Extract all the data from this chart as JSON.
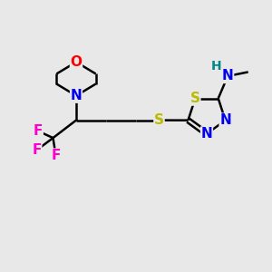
{
  "background_color": "#e8e8e8",
  "atom_colors": {
    "O": "#ff0000",
    "N": "#0000ee",
    "S": "#bbbb00",
    "F": "#ff00cc",
    "H": "#008888",
    "C": "#000000"
  },
  "lw": 1.8,
  "fs": 11,
  "figsize": [
    3.0,
    3.0
  ],
  "dpi": 100,
  "xlim": [
    0,
    10
  ],
  "ylim": [
    0,
    10
  ]
}
